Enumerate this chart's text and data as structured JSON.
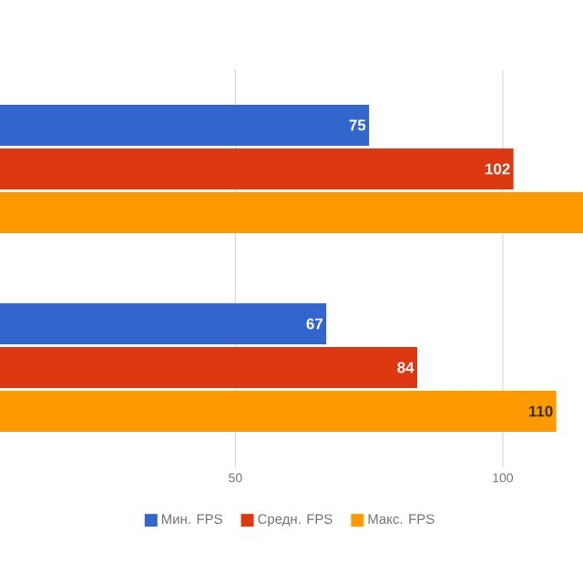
{
  "chart_data": {
    "type": "bar",
    "orientation": "horizontal",
    "categories": [
      null,
      null
    ],
    "series": [
      {
        "name": "Мин. FPS",
        "color": "#3366cc",
        "values": [
          75,
          67
        ],
        "value_labels": [
          "75",
          "67"
        ]
      },
      {
        "name": "Средн. FPS",
        "color": "#dc3912",
        "values": [
          102,
          84
        ],
        "value_labels": [
          "102",
          "84"
        ]
      },
      {
        "name": "Макс. FPS",
        "color": "#ff9900",
        "values": [
          115,
          110
        ],
        "value_labels": [
          null,
          "110"
        ]
      }
    ],
    "xlim": [
      6,
      115
    ],
    "xticks": [
      50,
      100
    ],
    "grid": "x",
    "legend": "bottom",
    "tick_labels": "x"
  }
}
